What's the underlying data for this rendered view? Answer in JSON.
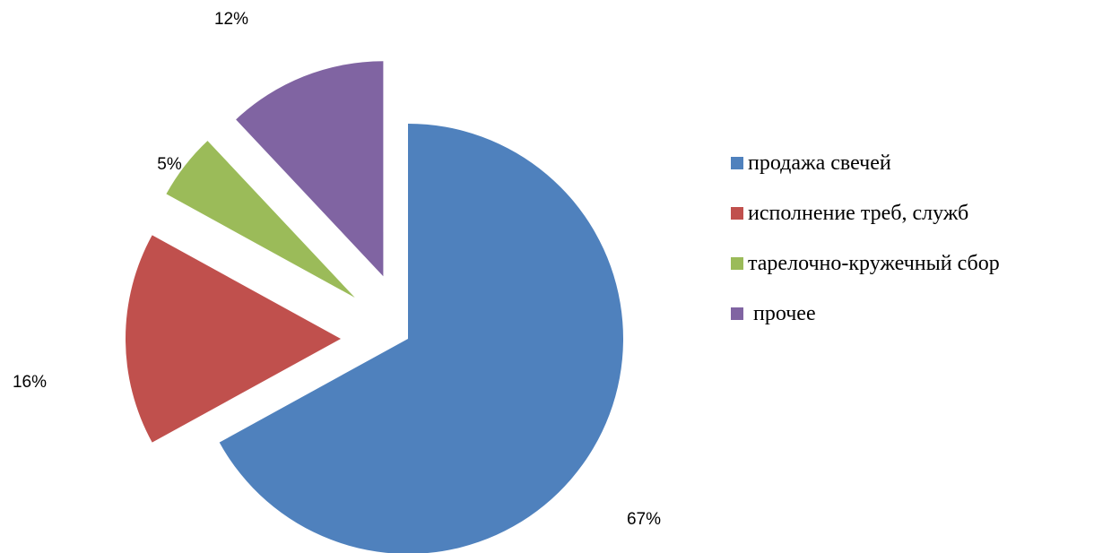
{
  "chart_data": {
    "type": "pie",
    "categories": [
      "продажа свечей",
      "исполнение треб, служб",
      "тарелочно-кружечный сбор",
      " прочее"
    ],
    "values": [
      67,
      16,
      5,
      12
    ],
    "data_labels": [
      "67%",
      "16%",
      "5%",
      "12%"
    ],
    "colors": [
      "#4F81BD",
      "#C0504D",
      "#9BBB59",
      "#8064A2"
    ],
    "exploded": [
      false,
      true,
      true,
      true
    ],
    "start_angle_deg": 0,
    "direction": "clockwise",
    "legend_position": "right"
  }
}
